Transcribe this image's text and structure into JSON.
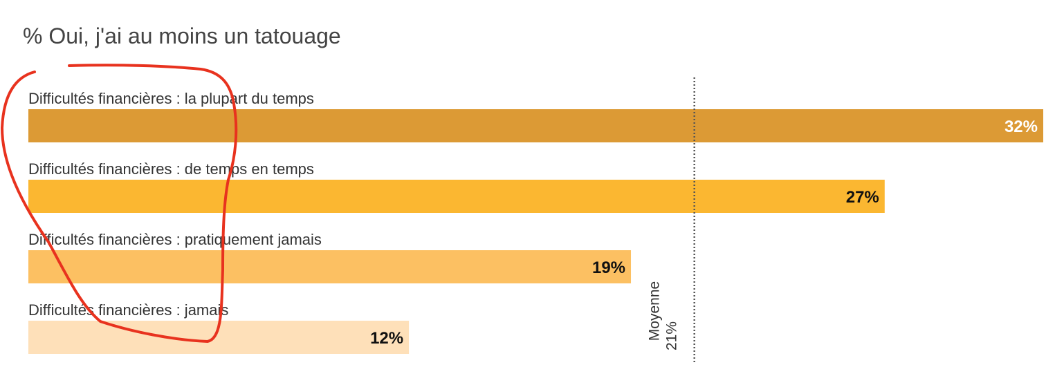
{
  "chart_data": {
    "type": "bar",
    "orientation": "horizontal",
    "title": "% Oui, j'ai au moins un tatouage",
    "categories": [
      "Difficultés financières : la plupart du temps",
      "Difficultés financières : de temps en temps",
      "Difficultés financières : pratiquement jamais",
      "Difficultés financières : jamais"
    ],
    "values": [
      32,
      27,
      19,
      12
    ],
    "value_labels": [
      "32%",
      "27%",
      "19%",
      "12%"
    ],
    "unit": "%",
    "xlim": [
      0,
      32
    ],
    "grid": false,
    "legend": "none",
    "colors": [
      "#dc9a35",
      "#fbb731",
      "#fcc062",
      "#fee0b9"
    ],
    "value_label_colors": [
      "#ffffff",
      "#111111",
      "#111111",
      "#111111"
    ],
    "reference_line": {
      "value": 21,
      "label": "Moyenne",
      "value_label": "21%",
      "style": "dotted"
    },
    "annotation": {
      "type": "hand-drawn-circle",
      "color": "#e8321e"
    }
  }
}
